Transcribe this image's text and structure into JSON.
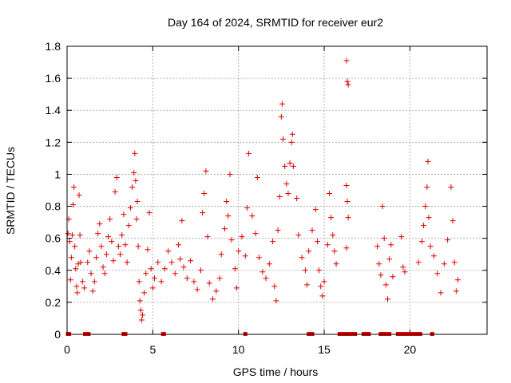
{
  "chart_data": {
    "type": "scatter",
    "title": "Day 164 of 2024, SRMTID for receiver eur2",
    "xlabel": "GPS time / hours",
    "ylabel": "SRMTID / TECUs",
    "xlim": [
      0,
      24.5
    ],
    "ylim": [
      0,
      1.8
    ],
    "x_ticks": [
      0,
      5,
      10,
      15,
      20
    ],
    "x_tick_labels": [
      "0",
      "5",
      "10",
      "15",
      "20"
    ],
    "y_ticks": [
      0,
      0.2,
      0.4,
      0.6,
      0.8,
      1,
      1.2,
      1.4,
      1.6,
      1.8
    ],
    "y_tick_labels": [
      "0",
      "0.2",
      "0.4",
      "0.6",
      "0.8",
      "1",
      "1.2",
      "1.4",
      "1.6",
      "1.8"
    ],
    "grid": true,
    "marker": "plus",
    "series_color": "#dd0000",
    "series": [
      {
        "name": "SRMTID",
        "points": [
          [
            0.05,
            0.63
          ],
          [
            0.1,
            0.72
          ],
          [
            0.15,
            0.58
          ],
          [
            0.2,
            0.34
          ],
          [
            0.25,
            0.48
          ],
          [
            0.3,
            0.62
          ],
          [
            0.35,
            0.81
          ],
          [
            0.4,
            0.92
          ],
          [
            0.45,
            0.55
          ],
          [
            0.5,
            0.41
          ],
          [
            0.55,
            0.3
          ],
          [
            0.6,
            0.26
          ],
          [
            0.65,
            0.44
          ],
          [
            0.7,
            0.87
          ],
          [
            0.75,
            0.62
          ],
          [
            0.8,
            0.45
          ],
          [
            0.9,
            0.33
          ],
          [
            1.0,
            0.29
          ],
          [
            1.2,
            0.45
          ],
          [
            1.3,
            0.52
          ],
          [
            1.4,
            0.38
          ],
          [
            1.5,
            0.27
          ],
          [
            1.6,
            0.33
          ],
          [
            1.7,
            0.48
          ],
          [
            1.8,
            0.63
          ],
          [
            1.9,
            0.69
          ],
          [
            2.0,
            0.55
          ],
          [
            2.1,
            0.42
          ],
          [
            2.2,
            0.38
          ],
          [
            2.3,
            0.5
          ],
          [
            2.4,
            0.61
          ],
          [
            2.5,
            0.72
          ],
          [
            2.6,
            0.58
          ],
          [
            2.7,
            0.46
          ],
          [
            2.8,
            0.89
          ],
          [
            2.9,
            0.98
          ],
          [
            3.0,
            0.55
          ],
          [
            3.1,
            0.5
          ],
          [
            3.2,
            0.62
          ],
          [
            3.3,
            0.75
          ],
          [
            3.4,
            0.56
          ],
          [
            3.5,
            0.45
          ],
          [
            3.6,
            0.68
          ],
          [
            3.7,
            0.79
          ],
          [
            3.8,
            0.92
          ],
          [
            3.9,
            1.01
          ],
          [
            3.95,
            1.13
          ],
          [
            4.0,
            0.96
          ],
          [
            4.05,
            0.72
          ],
          [
            4.1,
            0.83
          ],
          [
            4.15,
            0.55
          ],
          [
            4.2,
            0.33
          ],
          [
            4.25,
            0.21
          ],
          [
            4.3,
            0.15
          ],
          [
            4.35,
            0.09
          ],
          [
            4.4,
            0.12
          ],
          [
            4.5,
            0.26
          ],
          [
            4.6,
            0.38
          ],
          [
            4.7,
            0.53
          ],
          [
            4.8,
            0.76
          ],
          [
            4.9,
            0.41
          ],
          [
            5.0,
            0.29
          ],
          [
            5.1,
            0.35
          ],
          [
            5.3,
            0.45
          ],
          [
            5.5,
            0.33
          ],
          [
            5.7,
            0.41
          ],
          [
            5.9,
            0.52
          ],
          [
            6.1,
            0.45
          ],
          [
            6.3,
            0.38
          ],
          [
            6.5,
            0.56
          ],
          [
            6.6,
            0.47
          ],
          [
            6.7,
            0.71
          ],
          [
            6.8,
            0.42
          ],
          [
            7.0,
            0.35
          ],
          [
            7.2,
            0.46
          ],
          [
            7.4,
            0.33
          ],
          [
            7.6,
            0.28
          ],
          [
            7.8,
            0.4
          ],
          [
            7.9,
            0.76
          ],
          [
            8.0,
            0.88
          ],
          [
            8.1,
            1.02
          ],
          [
            8.2,
            0.61
          ],
          [
            8.3,
            0.32
          ],
          [
            8.5,
            0.22
          ],
          [
            8.7,
            0.27
          ],
          [
            8.9,
            0.35
          ],
          [
            9.0,
            0.5
          ],
          [
            9.2,
            0.66
          ],
          [
            9.3,
            0.83
          ],
          [
            9.4,
            0.74
          ],
          [
            9.5,
            1.0
          ],
          [
            9.6,
            0.59
          ],
          [
            9.8,
            0.41
          ],
          [
            9.9,
            0.29
          ],
          [
            10.0,
            0.52
          ],
          [
            10.2,
            0.61
          ],
          [
            10.4,
            0.49
          ],
          [
            10.5,
            0.79
          ],
          [
            10.6,
            1.13
          ],
          [
            10.8,
            0.74
          ],
          [
            11.0,
            0.63
          ],
          [
            11.1,
            0.98
          ],
          [
            11.2,
            0.48
          ],
          [
            11.4,
            0.39
          ],
          [
            11.6,
            0.35
          ],
          [
            11.8,
            0.44
          ],
          [
            12.0,
            0.58
          ],
          [
            12.1,
            0.3
          ],
          [
            12.2,
            0.21
          ],
          [
            12.3,
            0.65
          ],
          [
            12.4,
            0.86
          ],
          [
            12.5,
            1.36
          ],
          [
            12.55,
            1.44
          ],
          [
            12.6,
            1.22
          ],
          [
            12.7,
            1.05
          ],
          [
            12.8,
            0.94
          ],
          [
            12.9,
            0.88
          ],
          [
            13.0,
            1.07
          ],
          [
            13.1,
            1.2
          ],
          [
            13.15,
            1.25
          ],
          [
            13.2,
            1.05
          ],
          [
            13.4,
            0.85
          ],
          [
            13.5,
            0.62
          ],
          [
            13.7,
            0.48
          ],
          [
            13.9,
            0.4
          ],
          [
            14.0,
            0.31
          ],
          [
            14.1,
            0.52
          ],
          [
            14.3,
            0.65
          ],
          [
            14.5,
            0.78
          ],
          [
            14.6,
            0.58
          ],
          [
            14.7,
            0.4
          ],
          [
            14.8,
            0.3
          ],
          [
            14.9,
            0.24
          ],
          [
            15.0,
            0.33
          ],
          [
            15.2,
            0.56
          ],
          [
            15.3,
            0.88
          ],
          [
            15.4,
            0.73
          ],
          [
            15.5,
            0.62
          ],
          [
            15.6,
            0.52
          ],
          [
            15.7,
            0.44
          ],
          [
            16.3,
            1.71
          ],
          [
            16.35,
            1.58
          ],
          [
            16.4,
            1.56
          ],
          [
            16.3,
            0.93
          ],
          [
            16.35,
            0.83
          ],
          [
            16.4,
            0.73
          ],
          [
            16.3,
            0.54
          ],
          [
            18.1,
            0.55
          ],
          [
            18.2,
            0.44
          ],
          [
            18.3,
            0.37
          ],
          [
            18.4,
            0.8
          ],
          [
            18.5,
            0.6
          ],
          [
            18.6,
            0.31
          ],
          [
            18.7,
            0.22
          ],
          [
            18.8,
            0.47
          ],
          [
            18.9,
            0.56
          ],
          [
            19.0,
            0.36
          ],
          [
            19.5,
            0.61
          ],
          [
            19.6,
            0.42
          ],
          [
            19.7,
            0.39
          ],
          [
            20.5,
            0.45
          ],
          [
            20.7,
            0.58
          ],
          [
            20.8,
            0.68
          ],
          [
            20.9,
            0.8
          ],
          [
            21.0,
            0.92
          ],
          [
            21.05,
            1.08
          ],
          [
            21.1,
            0.73
          ],
          [
            21.2,
            0.55
          ],
          [
            21.4,
            0.49
          ],
          [
            21.6,
            0.38
          ],
          [
            21.8,
            0.26
          ],
          [
            22.0,
            0.44
          ],
          [
            22.2,
            0.59
          ],
          [
            22.4,
            0.92
          ],
          [
            22.5,
            0.71
          ],
          [
            22.6,
            0.45
          ],
          [
            22.7,
            0.27
          ],
          [
            22.8,
            0.34
          ]
        ]
      }
    ],
    "zero_markers_x": [
      0.05,
      0.12,
      1.05,
      1.15,
      1.25,
      3.3,
      3.4,
      5.6,
      5.65,
      10.4,
      14.1,
      14.2,
      14.3,
      15.9,
      16.0,
      16.1,
      16.2,
      16.3,
      16.5,
      16.7,
      16.8,
      17.3,
      17.4,
      17.5,
      17.6,
      18.3,
      18.5,
      18.7,
      18.8,
      19.3,
      19.5,
      19.6,
      19.8,
      20.0,
      20.2,
      20.3,
      20.4,
      20.6,
      21.3
    ]
  }
}
